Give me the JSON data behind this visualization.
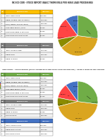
{
  "title1": "RK ECO COIR - STOCK REPORT (BASIC THUMB RULE PER HUSK LOAD PROCESSING)",
  "title2": "ADDITIONAL - STOCK REPORT (BASIC THUMB RULE PER HUSK LOAD PROCESSING) - AFTER 6 MONTHS DRY SEASON",
  "pie1": {
    "values": [
      10,
      18,
      7,
      38,
      27
    ],
    "colors": [
      "#4472C4",
      "#FF4444",
      "#8B8B00",
      "#DAA520",
      "#70AD47"
    ],
    "labels": [
      "55,000",
      "180,972",
      "1,44,875",
      "3,500,400",
      "1,44,875"
    ]
  },
  "pie2": {
    "values": [
      10,
      12,
      7,
      44,
      27
    ],
    "colors": [
      "#4472C4",
      "#FF4444",
      "#8B8B00",
      "#DAA520",
      "#70AD47"
    ],
    "labels": [
      "55,000",
      "90,000",
      "10,125",
      "3,55,500",
      "1,44,875"
    ]
  },
  "legend_entries": [
    "FIBER (APPROX. 35% OF INPUT)",
    "PITH (APPROX. 25% OF INPUT)",
    "COIR FIBER REJECT / DUST",
    "REMAINING FIBER IN MACHINE",
    "REMAINING PITH IN MACHINE"
  ],
  "legend_colors": [
    "#4472C4",
    "#FF4444",
    "#8B8B00",
    "#DAA520",
    "#70AD47"
  ],
  "table1_header": [
    "NO.",
    "PARTICULARS",
    "AMOUNT"
  ],
  "table1_rows": [
    [
      "1",
      "TOTAL INPUT HUSK",
      "5,00,000"
    ],
    [
      "2",
      "FIBER (APPROX. 35% OF INPUT)",
      "1,75,000"
    ],
    [
      "3",
      "PITH (APPROX. 25% OF INPUT)",
      "1,25,000"
    ],
    [
      "4",
      "COIR FIBER REJECT / DUST",
      "40,000"
    ],
    [
      "5",
      "REMAINING FIBER IN MACHINE",
      "35,000"
    ],
    [
      "6",
      "REMAINING PITH IN MACHINE",
      "25,000"
    ]
  ],
  "table2_header": [
    "NO.",
    "PARTICULARS",
    "AMOUNT"
  ],
  "table2_rows": [
    [
      "1",
      "TOTAL OUTPUT FIBER",
      "1,75,000"
    ],
    [
      "2",
      "FIBER SOLD",
      "1,40,000"
    ],
    [
      "3",
      "FIBER IN STOCK",
      "35,000"
    ]
  ],
  "table3_header": [
    "NO.",
    "PARTICULARS",
    "AMOUNT"
  ],
  "table3_rows": [
    [
      "1",
      "TOTAL INPUT HUSK",
      "5,00,000"
    ],
    [
      "2",
      "FIBER (APPROX. 35% OF INPUT)",
      "1,75,000"
    ],
    [
      "3",
      "PITH (APPROX. 25% OF INPUT)",
      "1,25,000"
    ],
    [
      "4",
      "COIR FIBER REJECT / DUST",
      "40,000"
    ],
    [
      "5",
      "REMAINING FIBER IN MACHINE",
      "35,000"
    ],
    [
      "6",
      "REMAINING PITH IN MACHINE",
      "25,000"
    ]
  ],
  "table4_header": [
    "NO.",
    "PARTICULARS",
    "AMOUNT"
  ],
  "table4_rows": [
    [
      "1",
      "TOTAL OUTPUT FIBER",
      "1,75,000"
    ],
    [
      "2",
      "FIBER SOLD",
      "1,40,000"
    ],
    [
      "3",
      "FIBER IN STOCK",
      "35,000"
    ],
    [
      "4",
      "PITH IN STOCK",
      "1,25,000"
    ]
  ],
  "table5_header": [
    "NO.",
    "PARTICULARS",
    "AMOUNT"
  ],
  "table5_rows": [
    [
      "1",
      "TOTAL STOCK VALUE",
      "5,00,000"
    ],
    [
      "2",
      "FIBER STOCK VALUE",
      "1,40,000"
    ],
    [
      "3",
      "PITH STOCK VALUE",
      "1,25,000"
    ]
  ],
  "hdr1_color": "#FFC000",
  "hdr2_color": "#808080",
  "hdr3_color": "#70AD47",
  "hdr4_color": "#808080",
  "hdr5_color": "#4472C4",
  "row_alt": "#F2F2F2",
  "row_base": "#FFFFFF",
  "bg": "#FFFFFF"
}
